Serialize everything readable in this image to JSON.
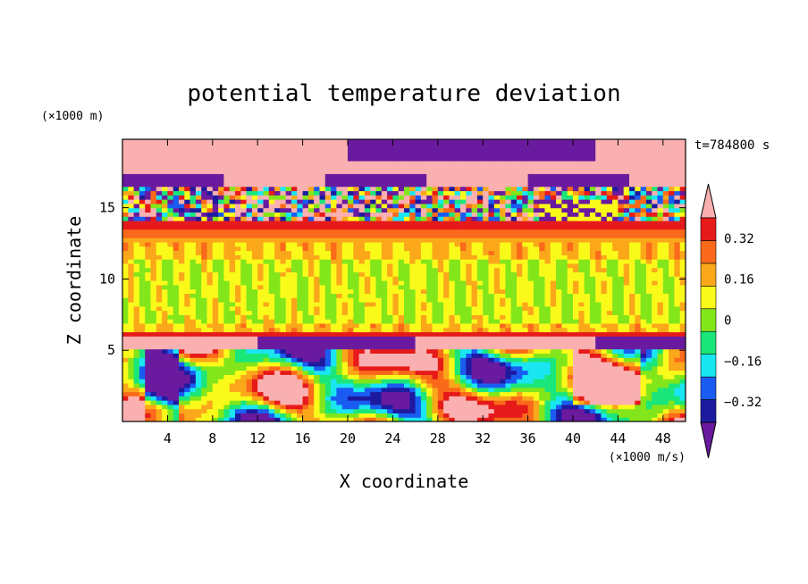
{
  "chart_data": {
    "type": "heatmap",
    "title": "potential temperature deviation",
    "xlabel": "X coordinate",
    "ylabel": "Z coordinate",
    "x_unit": "(×1000 m/s)",
    "y_unit": "(×1000 m)",
    "time_label": "t=784800 s",
    "xlim": [
      0,
      50
    ],
    "ylim": [
      0,
      19.8
    ],
    "x_ticks": [
      4,
      8,
      12,
      16,
      20,
      24,
      28,
      32,
      36,
      40,
      44,
      48
    ],
    "y_ticks": [
      5,
      10,
      15
    ],
    "colorbar": {
      "levels": [
        -0.4,
        -0.32,
        -0.24,
        -0.16,
        -0.08,
        0,
        0.08,
        0.16,
        0.24,
        0.32,
        0.4
      ],
      "tick_labels": [
        "0.32",
        "0.16",
        "0",
        "−0.16",
        "−0.32"
      ],
      "tick_values": [
        0.32,
        0.16,
        0,
        -0.16,
        -0.32
      ],
      "colors": [
        "#6a1a9e",
        "#1e1aa0",
        "#1a5cf2",
        "#1ae6f2",
        "#1ae67a",
        "#82e61a",
        "#fafa1a",
        "#faa81a",
        "#fa6a1a",
        "#e61a1a",
        "#fab0b0"
      ],
      "extend": "both"
    },
    "bands": [
      {
        "z_range": [
          17.5,
          19.8
        ],
        "dominant": "above 0.4 / below -0.4 mixed"
      },
      {
        "z_range": [
          14.2,
          16.5
        ],
        "dominant": "small-scale mixed"
      },
      {
        "z_range": [
          12.5,
          14.2
        ],
        "dominant": "0.16 to 0.4 (stable warm layer)"
      },
      {
        "z_range": [
          6.2,
          12.5
        ],
        "dominant": "-0.08 to 0.08"
      },
      {
        "z_range": [
          5.0,
          6.2
        ],
        "dominant": "above 0.4 / below -0.4"
      },
      {
        "z_range": [
          0,
          5.0
        ],
        "dominant": "large convective eddies, full range"
      }
    ]
  }
}
